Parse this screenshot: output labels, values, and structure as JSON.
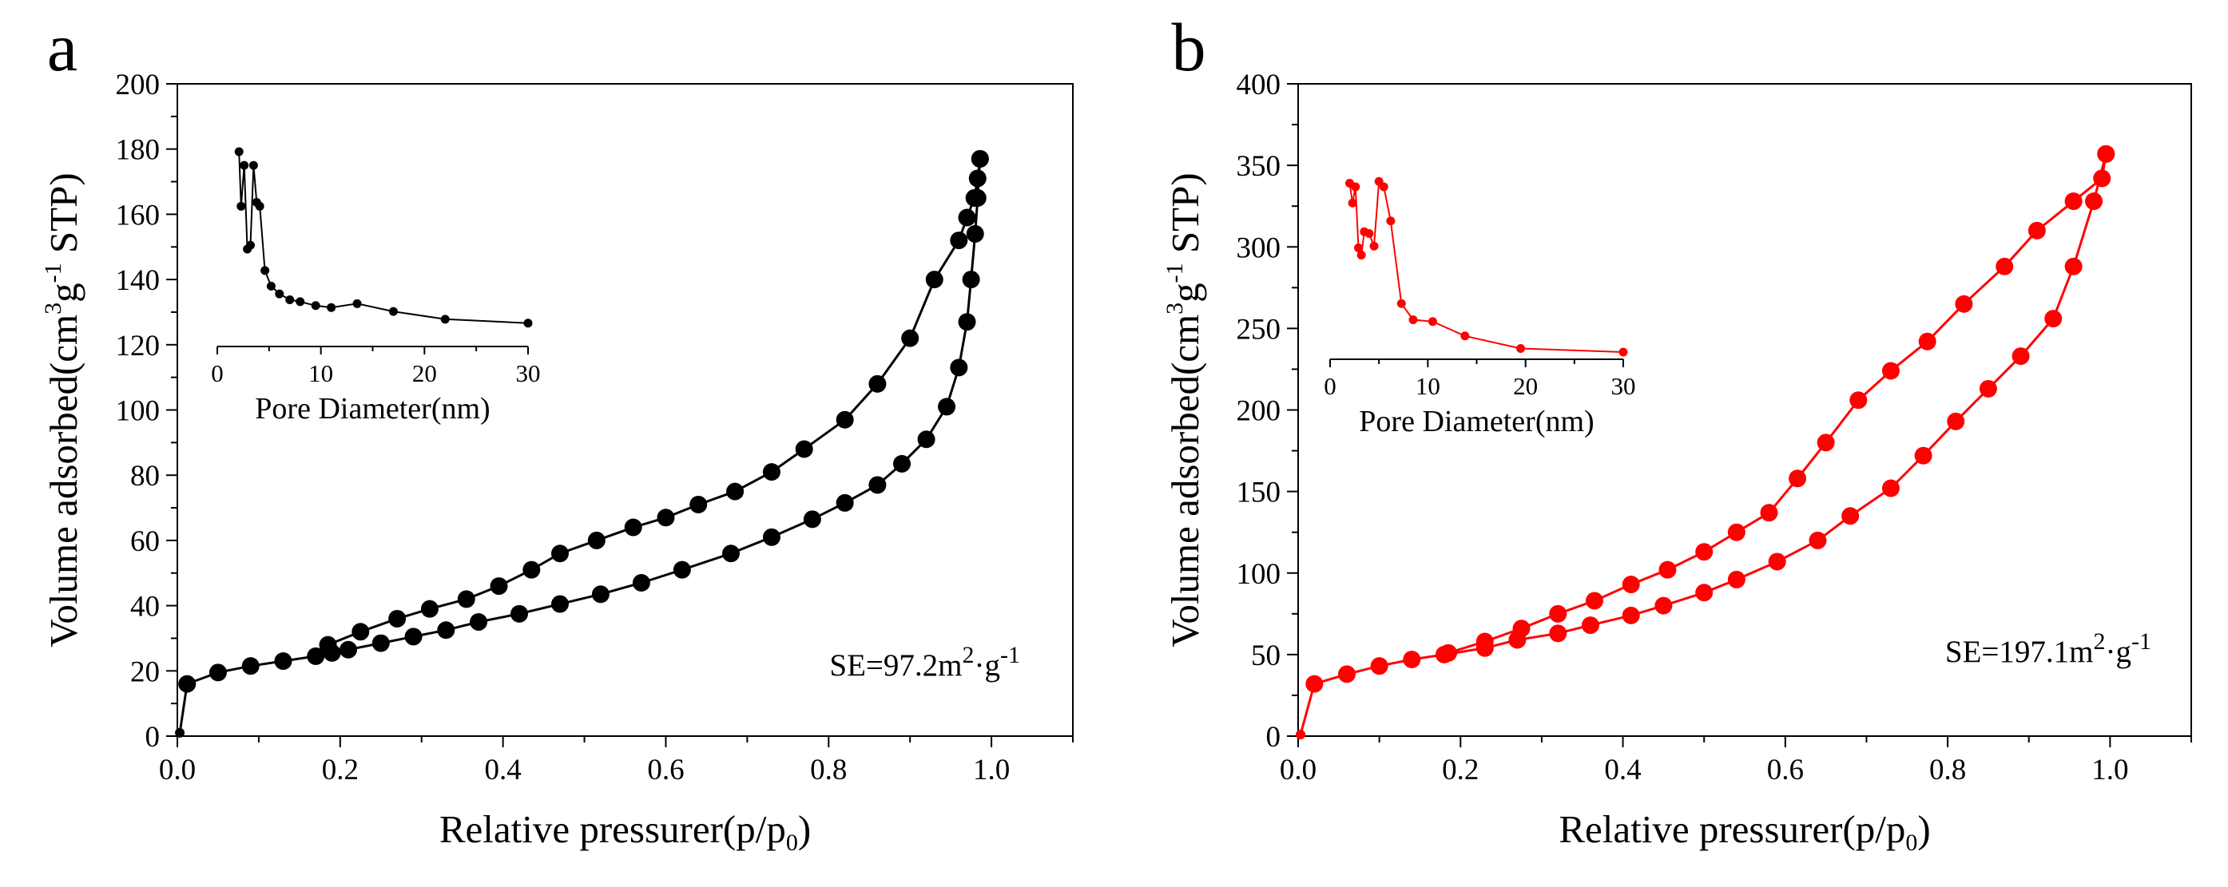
{
  "chart_data": [
    {
      "type": "line",
      "panel_label": "a",
      "color": "#000000",
      "xlabel": {
        "main": "Relative pressurer(p/p",
        "sub": "0",
        "close": ")"
      },
      "ylabel": {
        "main": "Volume adsorbed(cm",
        "sup1": "3",
        "mid": "g",
        "sup2": "-1",
        "tail": " STP)"
      },
      "xlim": [
        0,
        1.1
      ],
      "ylim": [
        0,
        200
      ],
      "xticks": [
        0.0,
        0.2,
        0.4,
        0.6,
        0.8,
        1.0
      ],
      "xtick_labels": [
        "0.0",
        "0.2",
        "0.4",
        "0.6",
        "0.8",
        "1.0"
      ],
      "yticks": [
        0,
        20,
        40,
        60,
        80,
        100,
        120,
        140,
        160,
        180,
        200
      ],
      "ytick_labels": [
        "0",
        "20",
        "40",
        "60",
        "80",
        "100",
        "120",
        "140",
        "160",
        "180",
        "200"
      ],
      "annotation": {
        "main": "SE=97.2m",
        "sup1": "2",
        "mid": "·g",
        "sup2": "-1"
      },
      "series": [
        {
          "name": "adsorption",
          "x": [
            0.003,
            0.012,
            0.05,
            0.09,
            0.13,
            0.17,
            0.19,
            0.21,
            0.25,
            0.29,
            0.33,
            0.37,
            0.42,
            0.47,
            0.52,
            0.57,
            0.62,
            0.68,
            0.73,
            0.78,
            0.82,
            0.86,
            0.89,
            0.92,
            0.945,
            0.96,
            0.97,
            0.975,
            0.98,
            0.983,
            0.986
          ],
          "y": [
            1,
            16,
            19.5,
            21.5,
            23,
            24.5,
            25.5,
            26.5,
            28.5,
            30.5,
            32.5,
            35,
            37.5,
            40.5,
            43.5,
            47,
            51,
            56,
            61,
            66.5,
            71.5,
            77,
            83.5,
            91,
            101,
            113,
            127,
            140,
            154,
            165,
            177
          ]
        },
        {
          "name": "desorption",
          "x": [
            0.986,
            0.983,
            0.979,
            0.97,
            0.96,
            0.93,
            0.9,
            0.86,
            0.82,
            0.77,
            0.73,
            0.685,
            0.64,
            0.6,
            0.56,
            0.515,
            0.47,
            0.435,
            0.395,
            0.355,
            0.31,
            0.27,
            0.225,
            0.185
          ],
          "y": [
            177,
            171,
            165,
            159,
            152,
            140,
            122,
            108,
            97,
            88,
            81,
            75,
            71,
            67,
            64,
            60,
            56,
            51,
            46,
            42,
            39,
            36,
            32,
            28
          ]
        }
      ],
      "inset": {
        "xlabel": "Pore Diameter(nm)",
        "xlim": [
          0,
          30
        ],
        "xticks": [
          0,
          10,
          20,
          30
        ],
        "xtick_labels": [
          "0",
          "10",
          "20",
          "30"
        ],
        "ylim": [
          0,
          1
        ],
        "x": [
          2.1,
          2.3,
          2.6,
          2.9,
          3.2,
          3.5,
          3.8,
          4.1,
          4.6,
          5.2,
          6.0,
          7.0,
          8.0,
          9.5,
          11.0,
          13.5,
          17.0,
          22.0,
          30.0
        ],
        "y": [
          1.0,
          0.72,
          0.93,
          0.5,
          0.52,
          0.93,
          0.74,
          0.72,
          0.39,
          0.31,
          0.27,
          0.24,
          0.23,
          0.21,
          0.2,
          0.22,
          0.18,
          0.14,
          0.12
        ]
      }
    },
    {
      "type": "line",
      "panel_label": "b",
      "color": "#ff0000",
      "xlabel": {
        "main": "Relative pressurer(p/p",
        "sub": "0",
        "close": ")"
      },
      "ylabel": {
        "main": "Volume adsorbed(cm",
        "sup1": "3",
        "mid": "g",
        "sup2": "-1",
        "tail": " STP)"
      },
      "xlim": [
        0,
        1.1
      ],
      "ylim": [
        0,
        400
      ],
      "xticks": [
        0.0,
        0.2,
        0.4,
        0.6,
        0.8,
        1.0
      ],
      "xtick_labels": [
        "0.0",
        "0.2",
        "0.4",
        "0.6",
        "0.8",
        "1.0"
      ],
      "yticks": [
        0,
        50,
        100,
        150,
        200,
        250,
        300,
        350,
        400
      ],
      "ytick_labels": [
        "0",
        "50",
        "100",
        "150",
        "200",
        "250",
        "300",
        "350",
        "400"
      ],
      "annotation": {
        "main": "SE=197.1m",
        "sup1": "2",
        "mid": "·g",
        "sup2": "-1"
      },
      "series": [
        {
          "name": "adsorption",
          "x": [
            0.003,
            0.02,
            0.06,
            0.1,
            0.14,
            0.18,
            0.23,
            0.27,
            0.32,
            0.36,
            0.41,
            0.45,
            0.5,
            0.54,
            0.59,
            0.64,
            0.68,
            0.73,
            0.77,
            0.81,
            0.85,
            0.89,
            0.93,
            0.955,
            0.98,
            0.995
          ],
          "y": [
            1,
            32,
            38,
            43,
            47,
            50,
            54,
            59,
            63,
            68,
            74,
            80,
            88,
            96,
            107,
            120,
            135,
            152,
            172,
            193,
            213,
            233,
            256,
            288,
            328,
            357
          ]
        },
        {
          "name": "desorption",
          "x": [
            0.995,
            0.99,
            0.955,
            0.91,
            0.87,
            0.82,
            0.775,
            0.73,
            0.69,
            0.65,
            0.615,
            0.58,
            0.54,
            0.5,
            0.455,
            0.41,
            0.365,
            0.32,
            0.275,
            0.23,
            0.185
          ],
          "y": [
            357,
            342,
            328,
            310,
            288,
            265,
            242,
            224,
            206,
            180,
            158,
            137,
            125,
            113,
            102,
            93,
            83,
            75,
            66,
            58,
            51
          ]
        }
      ],
      "inset": {
        "xlabel": "Pore Diameter(nm)",
        "xlim": [
          0,
          30
        ],
        "xticks": [
          0,
          10,
          20,
          30
        ],
        "xtick_labels": [
          "0",
          "10",
          "20",
          "30"
        ],
        "ylim": [
          0,
          1
        ],
        "x": [
          2.0,
          2.3,
          2.6,
          2.9,
          3.2,
          3.5,
          4.0,
          4.5,
          5.0,
          5.5,
          6.2,
          7.3,
          8.5,
          10.5,
          13.8,
          19.5,
          30.0
        ],
        "y": [
          0.98,
          0.87,
          0.96,
          0.62,
          0.58,
          0.71,
          0.7,
          0.63,
          0.99,
          0.96,
          0.77,
          0.31,
          0.22,
          0.21,
          0.13,
          0.06,
          0.04
        ]
      }
    }
  ]
}
